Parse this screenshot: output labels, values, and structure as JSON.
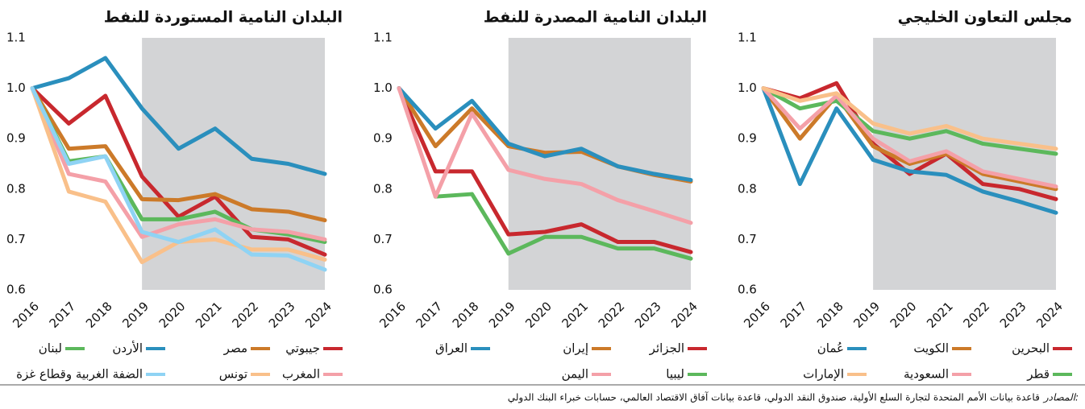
{
  "chart_data": [
    {
      "type": "line",
      "title": "مجلس التعاون الخليجي",
      "x": [
        2016,
        2017,
        2018,
        2019,
        2020,
        2021,
        2022,
        2023,
        2024
      ],
      "xlim": [
        2016,
        2024
      ],
      "xticks": [
        2016,
        2017,
        2018,
        2019,
        2020,
        2021,
        2022,
        2023,
        2024
      ],
      "ylim": [
        0.6,
        1.1
      ],
      "yticks": [
        0.6,
        0.7,
        0.8,
        0.9,
        {
          "value": 1,
          "label": "1.0"
        },
        1.1
      ],
      "shaded_x": [
        2019,
        2024
      ],
      "shade_color": "#d3d4d6",
      "series": [
        {
          "name": "البحرين",
          "color": "#c8282e",
          "values": [
            1.0,
            0.98,
            1.01,
            0.89,
            0.83,
            0.87,
            0.81,
            0.8,
            0.78
          ]
        },
        {
          "name": "الكويت",
          "color": "#cc7a29",
          "values": [
            1.0,
            0.9,
            0.985,
            0.885,
            0.85,
            0.87,
            0.83,
            0.815,
            0.8
          ]
        },
        {
          "name": "عُمان",
          "color": "#2a8fbd",
          "values": [
            1.0,
            0.81,
            0.96,
            0.858,
            0.835,
            0.828,
            0.795,
            0.775,
            0.753
          ]
        },
        {
          "name": "قطر",
          "color": "#5cb85c",
          "values": [
            1.0,
            0.96,
            0.975,
            0.915,
            0.9,
            0.915,
            0.89,
            0.88,
            0.87
          ]
        },
        {
          "name": "السعودية",
          "color": "#f4a0a8",
          "values": [
            1.0,
            0.92,
            0.985,
            0.9,
            0.855,
            0.875,
            0.835,
            0.82,
            0.805
          ]
        },
        {
          "name": "الإمارات",
          "color": "#f9c08a",
          "values": [
            1.0,
            0.975,
            0.99,
            0.93,
            0.91,
            0.925,
            0.9,
            0.89,
            0.88
          ]
        }
      ]
    },
    {
      "type": "line",
      "title": "البلدان النامية المصدرة للنفط",
      "x": [
        2016,
        2017,
        2018,
        2019,
        2020,
        2021,
        2022,
        2023,
        2024
      ],
      "xlim": [
        2016,
        2024
      ],
      "xticks": [
        2016,
        2017,
        2018,
        2019,
        2020,
        2021,
        2022,
        2023,
        2024
      ],
      "ylim": [
        0.6,
        1.1
      ],
      "yticks": [
        0.6,
        0.7,
        0.8,
        0.9,
        {
          "value": 1,
          "label": "1.0"
        },
        1.1
      ],
      "shaded_x": [
        2019,
        2024
      ],
      "shade_color": "#d3d4d6",
      "series": [
        {
          "name": "الجزائر",
          "color": "#c8282e",
          "values": [
            1.0,
            0.835,
            0.835,
            0.71,
            0.715,
            0.73,
            0.695,
            0.695,
            0.675
          ]
        },
        {
          "name": "إيران",
          "color": "#cc7a29",
          "values": [
            1.0,
            0.885,
            0.96,
            0.885,
            0.872,
            0.874,
            0.845,
            0.828,
            0.815
          ]
        },
        {
          "name": "العراق",
          "color": "#2a8fbd",
          "values": [
            1.0,
            0.92,
            0.975,
            0.89,
            0.865,
            0.88,
            0.845,
            0.83,
            0.818
          ]
        },
        {
          "name": "ليبيا",
          "color": "#5cb85c",
          "values": [
            null,
            0.785,
            0.79,
            0.672,
            0.705,
            0.705,
            0.682,
            0.682,
            0.662
          ]
        },
        {
          "name": "اليمن",
          "color": "#f4a0a8",
          "values": [
            1.0,
            0.785,
            0.95,
            0.838,
            0.82,
            0.81,
            0.778,
            0.756,
            0.733
          ]
        }
      ]
    },
    {
      "type": "line",
      "title": "البلدان النامية المستوردة للنفط",
      "x": [
        2016,
        2017,
        2018,
        2019,
        2020,
        2021,
        2022,
        2023,
        2024
      ],
      "xlim": [
        2016,
        2024
      ],
      "xticks": [
        2016,
        2017,
        2018,
        2019,
        2020,
        2021,
        2022,
        2023,
        2024
      ],
      "ylim": [
        0.6,
        1.1
      ],
      "yticks": [
        0.6,
        0.7,
        0.8,
        0.9,
        {
          "value": 1,
          "label": "1.0"
        },
        1.1
      ],
      "shaded_x": [
        2019,
        2024
      ],
      "shade_color": "#d3d4d6",
      "series": [
        {
          "name": "جيبوتي",
          "color": "#c8282e",
          "values": [
            1.0,
            0.93,
            0.985,
            0.825,
            0.745,
            0.785,
            0.705,
            0.7,
            0.67
          ]
        },
        {
          "name": "مصر",
          "color": "#cc7a29",
          "values": [
            1.0,
            0.88,
            0.885,
            0.78,
            0.778,
            0.79,
            0.76,
            0.755,
            0.738
          ]
        },
        {
          "name": "الأردن",
          "color": "#2a8fbd",
          "values": [
            1.0,
            1.02,
            1.06,
            0.96,
            0.88,
            0.92,
            0.86,
            0.85,
            0.83
          ]
        },
        {
          "name": "لبنان",
          "color": "#5cb85c",
          "values": [
            1.0,
            0.855,
            0.865,
            0.74,
            0.74,
            0.755,
            0.72,
            0.71,
            0.695
          ]
        },
        {
          "name": "المغرب",
          "color": "#f4a0a8",
          "values": [
            1.0,
            0.83,
            0.815,
            0.705,
            0.73,
            0.74,
            0.72,
            0.715,
            0.7
          ]
        },
        {
          "name": "تونس",
          "color": "#f9c08a",
          "values": [
            1.0,
            0.795,
            0.775,
            0.655,
            0.695,
            0.7,
            0.68,
            0.68,
            0.66
          ]
        },
        {
          "name": "الضفة الغربية وقطاع غزة",
          "color": "#8fd3f4",
          "values": [
            1.0,
            0.85,
            0.865,
            0.715,
            0.695,
            0.72,
            0.67,
            0.668,
            0.64
          ]
        }
      ]
    }
  ],
  "source_label": "المصادر:",
  "source_text": "قاعدة بيانات الأمم المتحدة لتجارة السلع الأولية، صندوق النقد الدولي، قاعدة بيانات آفاق الاقتصاد العالمي، حسابات خبراء البنك الدولي"
}
